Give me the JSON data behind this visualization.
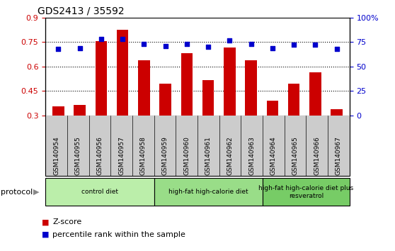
{
  "title": "GDS2413 / 35592",
  "samples": [
    "GSM140954",
    "GSM140955",
    "GSM140956",
    "GSM140957",
    "GSM140958",
    "GSM140959",
    "GSM140960",
    "GSM140961",
    "GSM140962",
    "GSM140963",
    "GSM140964",
    "GSM140965",
    "GSM140966",
    "GSM140967"
  ],
  "zscore": [
    0.355,
    0.365,
    0.755,
    0.825,
    0.64,
    0.495,
    0.68,
    0.515,
    0.715,
    0.64,
    0.39,
    0.495,
    0.565,
    0.34
  ],
  "percentile_vals": [
    68,
    69,
    78,
    78,
    73,
    71,
    73,
    70,
    77,
    73,
    69,
    72,
    72,
    68
  ],
  "bar_color": "#cc0000",
  "dot_color": "#0000cc",
  "ylim_left": [
    0.3,
    0.9
  ],
  "ylim_right": [
    0,
    100
  ],
  "yticks_left": [
    0.3,
    0.45,
    0.6,
    0.75,
    0.9
  ],
  "ytick_labels_left": [
    "0.3",
    "0.45",
    "0.6",
    "0.75",
    "0.9"
  ],
  "yticks_right": [
    0,
    25,
    50,
    75,
    100
  ],
  "ytick_labels_right": [
    "0",
    "25",
    "50",
    "75",
    "100%"
  ],
  "groups": [
    {
      "label": "control diet",
      "start": 0,
      "end": 4,
      "color": "#bbeeaa"
    },
    {
      "label": "high-fat high-calorie diet",
      "start": 5,
      "end": 9,
      "color": "#99dd88"
    },
    {
      "label": "high-fat high-calorie diet plus\nresveratrol",
      "start": 10,
      "end": 13,
      "color": "#77cc66"
    }
  ],
  "protocol_label": "protocol",
  "legend_zscore": "Z-score",
  "legend_percentile": "percentile rank within the sample",
  "tick_area_color": "#cccccc",
  "bg_color": "#ffffff"
}
